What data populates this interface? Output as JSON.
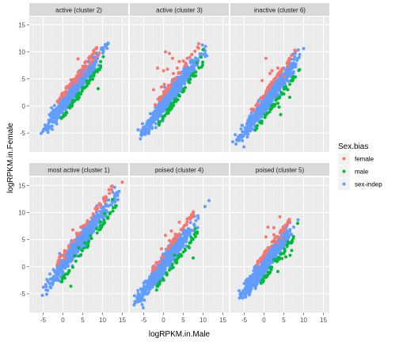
{
  "chart_data": {
    "type": "scatter",
    "facet_layout": "2 rows x 3 columns",
    "xlabel": "logRPKM.in.Male",
    "ylabel": "logRPKM.in.Female",
    "xlim": [
      -8.5,
      16.5
    ],
    "ylim": [
      -8.5,
      16.5
    ],
    "x_ticks": [
      -5,
      0,
      5,
      10,
      15
    ],
    "y_ticks": [
      -5,
      0,
      5,
      10,
      15
    ],
    "x_tick_labels": [
      "-5",
      "0",
      "5",
      "10",
      "15"
    ],
    "y_tick_labels": [
      "-5",
      "0",
      "5",
      "10",
      "15"
    ],
    "grid": true,
    "legend": {
      "title": "Sex.bias",
      "position": "right",
      "entries": [
        {
          "label": "female",
          "color": "#F8766D"
        },
        {
          "label": "male",
          "color": "#00BA38"
        },
        {
          "label": "sex-indep",
          "color": "#619CFF"
        }
      ]
    },
    "colors": {
      "panel_bg": "#EBEBEB",
      "strip_bg": "#D9D9D9",
      "grid_major": "#FFFFFF"
    },
    "panels": [
      {
        "strip": "active (cluster 2)",
        "cloud": {
          "x_range": [
            -5,
            11
          ],
          "y_range": [
            -6,
            11
          ]
        },
        "series": [
          {
            "name": "female",
            "points": [
              [
                3.8,
                8.7
              ],
              [
                2.0,
                4.8
              ],
              [
                6.0,
                7.2
              ],
              [
                7.2,
                8.2
              ],
              [
                8.6,
                9.2
              ],
              [
                5.0,
                5.8
              ],
              [
                3.0,
                4.2
              ],
              [
                9.2,
                9.8
              ],
              [
                6.8,
                7.8
              ],
              [
                4.2,
                5.4
              ],
              [
                1.5,
                3.5
              ],
              [
                2.8,
                4.9
              ],
              [
                5.6,
                6.6
              ],
              [
                7.8,
                8.6
              ],
              [
                0.5,
                2.0
              ],
              [
                3.5,
                4.6
              ]
            ]
          },
          {
            "name": "male",
            "points": [
              [
                3.5,
                2.0
              ],
              [
                5.0,
                3.4
              ],
              [
                6.0,
                4.6
              ],
              [
                8.0,
                6.2
              ],
              [
                9.5,
                8.2
              ],
              [
                10.2,
                9.1
              ],
              [
                8.9,
                3.2
              ],
              [
                11.4,
                11.5
              ],
              [
                4.0,
                2.4
              ],
              [
                7.0,
                5.4
              ],
              [
                2.5,
                1.0
              ]
            ]
          },
          {
            "name": "sex-indep",
            "points": [
              [
                11.4,
                11.6
              ],
              [
                10.9,
                11.0
              ]
            ]
          }
        ]
      },
      {
        "strip": "active (cluster 3)",
        "cloud": {
          "x_range": [
            -6,
            11
          ],
          "y_range": [
            -6,
            11
          ]
        },
        "series": [
          {
            "name": "female",
            "points": [
              [
                0.5,
                10.0
              ],
              [
                1.5,
                9.7
              ],
              [
                -2.5,
                3.0
              ],
              [
                -1.5,
                7.0
              ],
              [
                0.0,
                6.5
              ],
              [
                2.3,
                8.8
              ],
              [
                3.5,
                7.0
              ],
              [
                4.0,
                8.2
              ],
              [
                5.0,
                8.3
              ],
              [
                -0.5,
                3.5
              ],
              [
                1.0,
                6.8
              ],
              [
                2.5,
                6.0
              ],
              [
                6.0,
                8.8
              ],
              [
                3.0,
                5.0
              ],
              [
                0.2,
                4.0
              ]
            ]
          },
          {
            "name": "male",
            "points": [
              [
                2.0,
                0.5
              ],
              [
                3.0,
                1.3
              ],
              [
                4.0,
                2.0
              ],
              [
                5.5,
                3.4
              ],
              [
                6.5,
                4.9
              ],
              [
                7.5,
                6.0
              ],
              [
                8.5,
                8.0
              ],
              [
                9.5,
                9.0
              ],
              [
                10.0,
                10.4
              ],
              [
                1.0,
                -0.6
              ],
              [
                7.0,
                5.6
              ]
            ]
          },
          {
            "name": "sex-indep",
            "points": [
              [
                10.6,
                11.0
              ],
              [
                -6.4,
                -4.4
              ]
            ]
          }
        ]
      },
      {
        "strip": "inactive (cluster 6)",
        "cloud": {
          "x_range": [
            -7,
            10
          ],
          "y_range": [
            -7,
            10
          ]
        },
        "series": [
          {
            "name": "female",
            "points": [
              [
                0.5,
                8.8
              ],
              [
                1.5,
                6.0
              ],
              [
                -0.5,
                4.7
              ],
              [
                2.0,
                6.5
              ],
              [
                3.5,
                7.0
              ],
              [
                4.5,
                6.8
              ],
              [
                5.0,
                5.5
              ],
              [
                6.0,
                7.4
              ],
              [
                2.5,
                4.8
              ],
              [
                4.0,
                6.0
              ]
            ]
          },
          {
            "name": "male",
            "points": [
              [
                6.5,
                1.6
              ],
              [
                4.2,
                -1.6
              ],
              [
                3.8,
                -0.2
              ],
              [
                5.0,
                2.2
              ],
              [
                3.5,
                0.5
              ],
              [
                6.5,
                4.0
              ],
              [
                7.5,
                5.4
              ],
              [
                6.0,
                3.0
              ],
              [
                2.8,
                0.3
              ]
            ]
          },
          {
            "name": "sex-indep",
            "points": [
              [
                10.0,
                10.6
              ],
              [
                9.0,
                9.5
              ],
              [
                -6.5,
                -5.8
              ]
            ]
          }
        ]
      },
      {
        "strip": "most active (cluster 1)",
        "cloud": {
          "x_range": [
            -5,
            14
          ],
          "y_range": [
            -6,
            14
          ]
        },
        "series": [
          {
            "name": "female",
            "points": [
              [
                2.5,
                6.8
              ],
              [
                4.5,
                7.3
              ],
              [
                6.0,
                8.0
              ],
              [
                7.2,
                9.0
              ],
              [
                8.5,
                10.5
              ],
              [
                9.5,
                11.5
              ],
              [
                3.5,
                6.2
              ],
              [
                5.5,
                7.6
              ],
              [
                10.5,
                12.0
              ],
              [
                1.5,
                3.5
              ],
              [
                0.5,
                1.5
              ],
              [
                15.0,
                15.6
              ]
            ]
          },
          {
            "name": "male",
            "points": [
              [
                4.0,
                3.5
              ],
              [
                5.5,
                4.4
              ],
              [
                7.0,
                5.7
              ],
              [
                8.5,
                7.0
              ],
              [
                10.5,
                9.8
              ],
              [
                12.5,
                12.4
              ],
              [
                2.0,
                -3.6
              ],
              [
                3.0,
                2.0
              ],
              [
                9.5,
                8.3
              ]
            ]
          },
          {
            "name": "sex-indep",
            "points": [
              [
                -5.2,
                -5.3
              ],
              [
                13.2,
                13.4
              ]
            ]
          }
        ]
      },
      {
        "strip": "poised (cluster 4)",
        "cloud": {
          "x_range": [
            -7,
            9
          ],
          "y_range": [
            -7,
            10
          ]
        },
        "series": [
          {
            "name": "female",
            "points": [
              [
                0.5,
                5.8
              ],
              [
                2.0,
                6.6
              ],
              [
                4.0,
                8.2
              ],
              [
                5.0,
                7.2
              ],
              [
                6.0,
                8.8
              ],
              [
                3.0,
                6.0
              ],
              [
                1.5,
                4.8
              ],
              [
                -0.5,
                3.3
              ],
              [
                7.0,
                9.4
              ]
            ]
          },
          {
            "name": "male",
            "points": [
              [
                3.0,
                0.9
              ],
              [
                4.5,
                2.0
              ],
              [
                5.5,
                3.0
              ],
              [
                6.5,
                3.5
              ],
              [
                7.0,
                5.4
              ],
              [
                8.0,
                7.0
              ],
              [
                1.5,
                -0.6
              ],
              [
                7.5,
                1.6
              ],
              [
                2.8,
                2.1
              ]
            ]
          },
          {
            "name": "sex-indep",
            "points": [
              [
                11.5,
                12.2
              ],
              [
                10.5,
                11.1
              ],
              [
                -7.2,
                -6.7
              ]
            ]
          }
        ]
      },
      {
        "strip": "poised (cluster 5)",
        "cloud": {
          "x_range": [
            -6,
            8
          ],
          "y_range": [
            -7,
            10
          ]
        },
        "series": [
          {
            "name": "female",
            "points": [
              [
                1.0,
                7.3
              ],
              [
                2.5,
                7.2
              ],
              [
                4.0,
                9.2
              ],
              [
                4.5,
                5.3
              ],
              [
                0.5,
                5.5
              ],
              [
                2.5,
                5.9
              ],
              [
                3.5,
                4.4
              ],
              [
                5.0,
                6.6
              ],
              [
                1.0,
                3.5
              ]
            ]
          },
          {
            "name": "male",
            "points": [
              [
                4.5,
                1.5
              ],
              [
                5.5,
                1.8
              ],
              [
                7.0,
                3.0
              ],
              [
                8.5,
                8.0
              ],
              [
                6.0,
                4.6
              ],
              [
                3.5,
                -0.9
              ],
              [
                2.5,
                1.3
              ],
              [
                6.6,
                2.1
              ]
            ]
          },
          {
            "name": "sex-indep",
            "points": [
              [
                6.5,
                6.5
              ],
              [
                7.5,
                7.3
              ],
              [
                -6.2,
                -5.8
              ]
            ]
          }
        ]
      }
    ]
  }
}
